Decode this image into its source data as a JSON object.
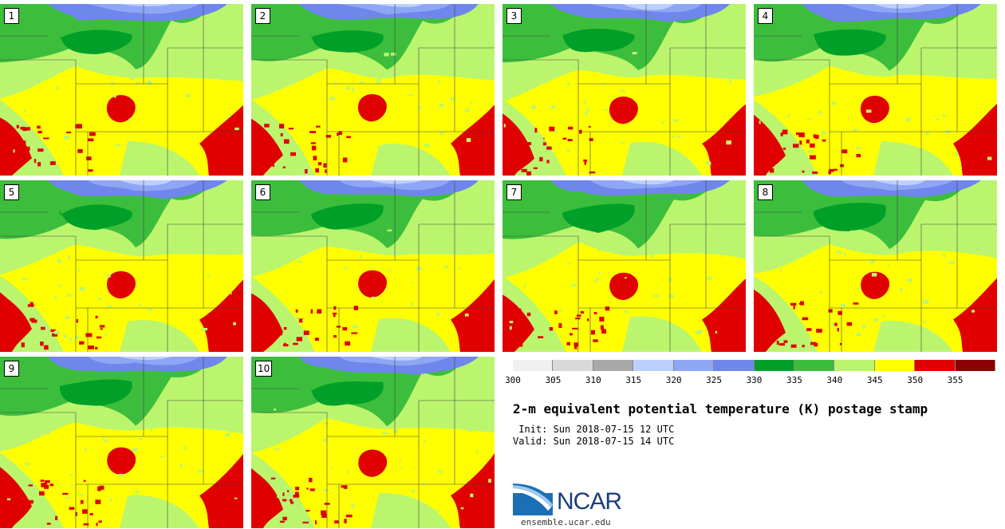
{
  "panels": [
    {
      "label": "1"
    },
    {
      "label": "2"
    },
    {
      "label": "3"
    },
    {
      "label": "4"
    },
    {
      "label": "5"
    },
    {
      "label": "6"
    },
    {
      "label": "7"
    },
    {
      "label": "8"
    },
    {
      "label": "9"
    },
    {
      "label": "10"
    }
  ],
  "colorbar": {
    "colors": [
      "#f0f0f0",
      "#d9d9d9",
      "#a8a8a8",
      "#bcd0ff",
      "#8fa6f5",
      "#6f86ec",
      "#00a028",
      "#3cbe3c",
      "#bbf56e",
      "#ffff00",
      "#e00000",
      "#8b0000"
    ],
    "ticks": [
      "300",
      "305",
      "310",
      "315",
      "320",
      "325",
      "330",
      "335",
      "340",
      "345",
      "350",
      "355"
    ]
  },
  "title": "2-m equivalent potential temperature (K) postage stamp",
  "init": " Init: Sun 2018-07-15 12 UTC",
  "valid": "Valid: Sun 2018-07-15 14 UTC",
  "logo": {
    "text": "NCAR",
    "url": "ensemble.ucar.edu"
  }
}
